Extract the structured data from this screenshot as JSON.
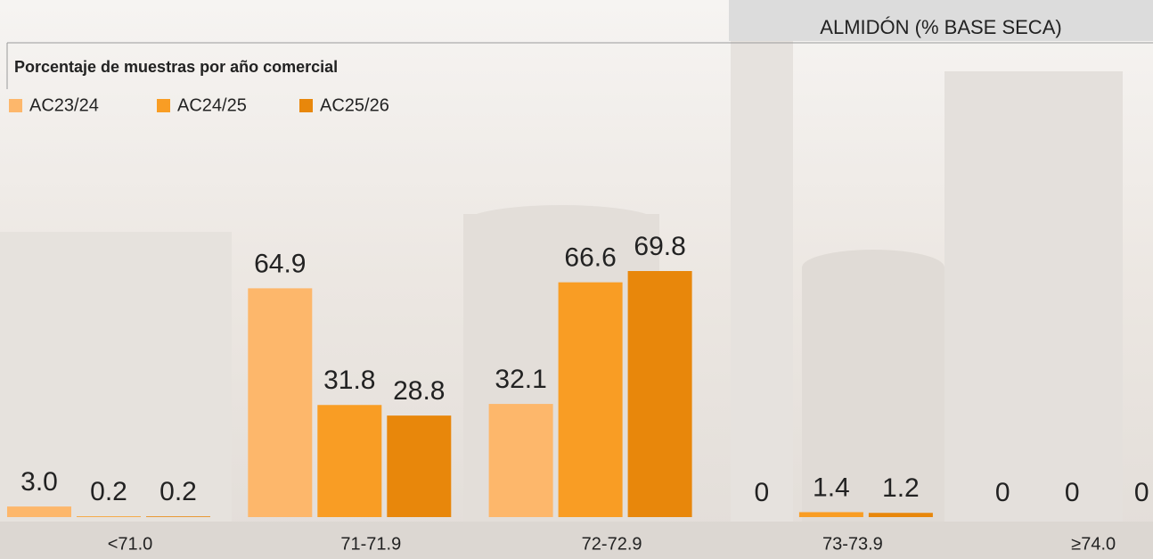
{
  "chart_data": {
    "type": "bar",
    "title": "ALMIDÓN (% BASE SECA)",
    "subtitle": "Porcentaje de muestras por año comercial",
    "categories": [
      "<71.0",
      "71-71.9",
      "72-72.9",
      "73-73.9",
      "≥74.0"
    ],
    "series": [
      {
        "name": "AC23/24",
        "color": "#fdb76b",
        "values": [
          3.0,
          64.9,
          32.1,
          0,
          0
        ],
        "value_labels": [
          "3.0",
          "64.9",
          "32.1",
          "0",
          "0"
        ]
      },
      {
        "name": "AC24/25",
        "color": "#f99d24",
        "values": [
          0.2,
          31.8,
          66.6,
          1.4,
          0
        ],
        "value_labels": [
          "0.2",
          "31.8",
          "66.6",
          "1.4",
          "0"
        ]
      },
      {
        "name": "AC25/26",
        "color": "#e8870b",
        "values": [
          0.2,
          28.8,
          69.8,
          1.2,
          0
        ],
        "value_labels": [
          "0.2",
          "28.8",
          "69.8",
          "1.2",
          "0"
        ]
      }
    ]
  }
}
